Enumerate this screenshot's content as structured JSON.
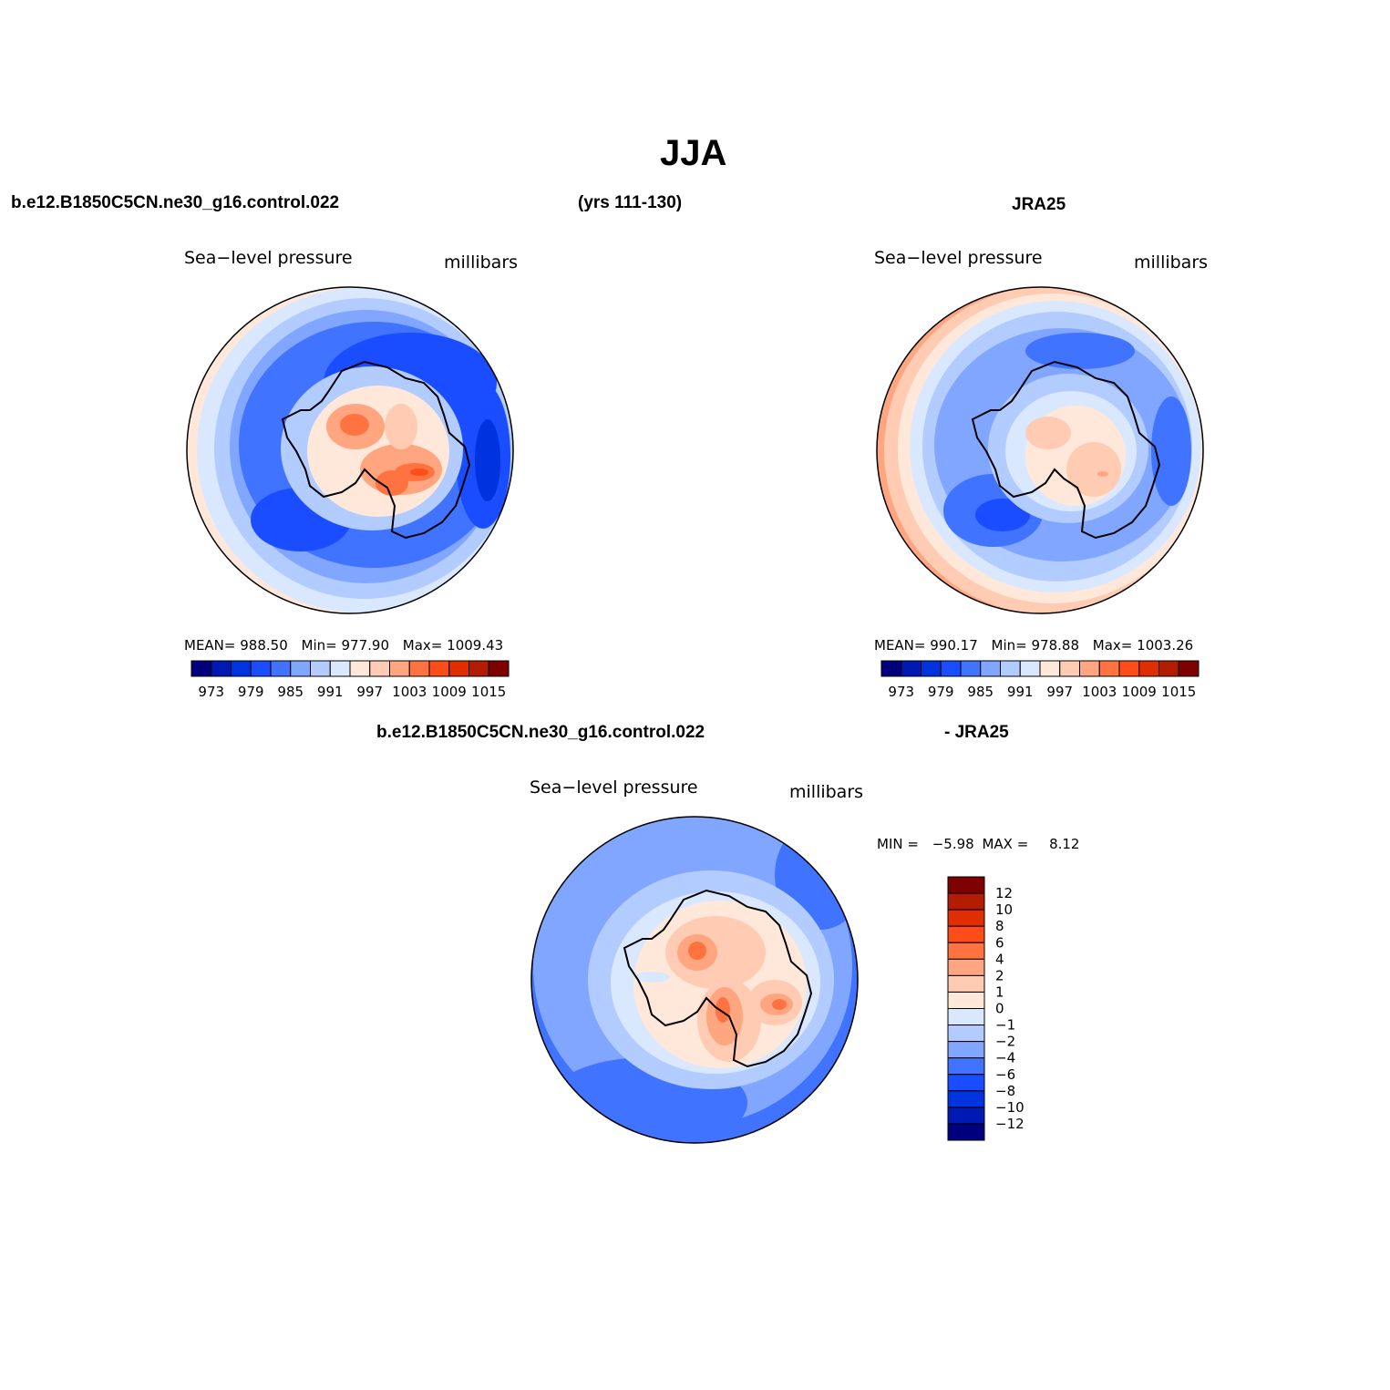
{
  "title": "JJA",
  "headers": {
    "left": "b.e12.B1850C5CN.ne30_g16.control.022",
    "mid": "(yrs 111-130)",
    "right": "JRA25",
    "diff_left": "b.e12.B1850C5CN.ne30_g16.control.022",
    "diff_right": "- JRA25"
  },
  "panels": [
    {
      "id": "model",
      "variable": "Sea−level pressure",
      "units": "millibars",
      "stats": {
        "mean_label": "MEAN=",
        "mean": "988.50",
        "min_label": "Min=",
        "min": "977.90",
        "max_label": "Max=",
        "max": "1009.43"
      },
      "colorbar_ticks": [
        "973",
        "979",
        "985",
        "991",
        "997",
        "1003",
        "1009",
        "1015"
      ]
    },
    {
      "id": "obs",
      "variable": "Sea−level pressure",
      "units": "millibars",
      "stats": {
        "mean_label": "MEAN=",
        "mean": "990.17",
        "min_label": "Min=",
        "min": "978.88",
        "max_label": "Max=",
        "max": "1003.26"
      },
      "colorbar_ticks": [
        "973",
        "979",
        "985",
        "991",
        "997",
        "1003",
        "1009",
        "1015"
      ]
    },
    {
      "id": "diff",
      "variable": "Sea−level pressure",
      "units": "millibars",
      "stats": {
        "min_label": "MIN =",
        "min": "−5.98",
        "max_label": "MAX =",
        "max": "8.12"
      },
      "colorbar_ticks": [
        "12",
        "10",
        "8",
        "6",
        "4",
        "2",
        "1",
        "0",
        "−1",
        "−2",
        "−4",
        "−6",
        "−8",
        "−10",
        "−12"
      ]
    }
  ],
  "colors": {
    "horizontal_bar": [
      "#00007f",
      "#0019b2",
      "#0033e0",
      "#1a4dff",
      "#4073ff",
      "#80a6ff",
      "#b3ccff",
      "#d9e8ff",
      "#ffe8d9",
      "#ffccb3",
      "#ffa680",
      "#ff7340",
      "#ff4d1a",
      "#e02e00",
      "#b21c00",
      "#7f0000"
    ],
    "vertical_bar": [
      "#7f0000",
      "#b21c00",
      "#e02e00",
      "#ff4d1a",
      "#ff7340",
      "#ffa680",
      "#ffccb3",
      "#ffe8d9",
      "#d9e8ff",
      "#b3ccff",
      "#80a6ff",
      "#4073ff",
      "#1a4dff",
      "#0033e0",
      "#0019b2",
      "#00007f"
    ]
  }
}
